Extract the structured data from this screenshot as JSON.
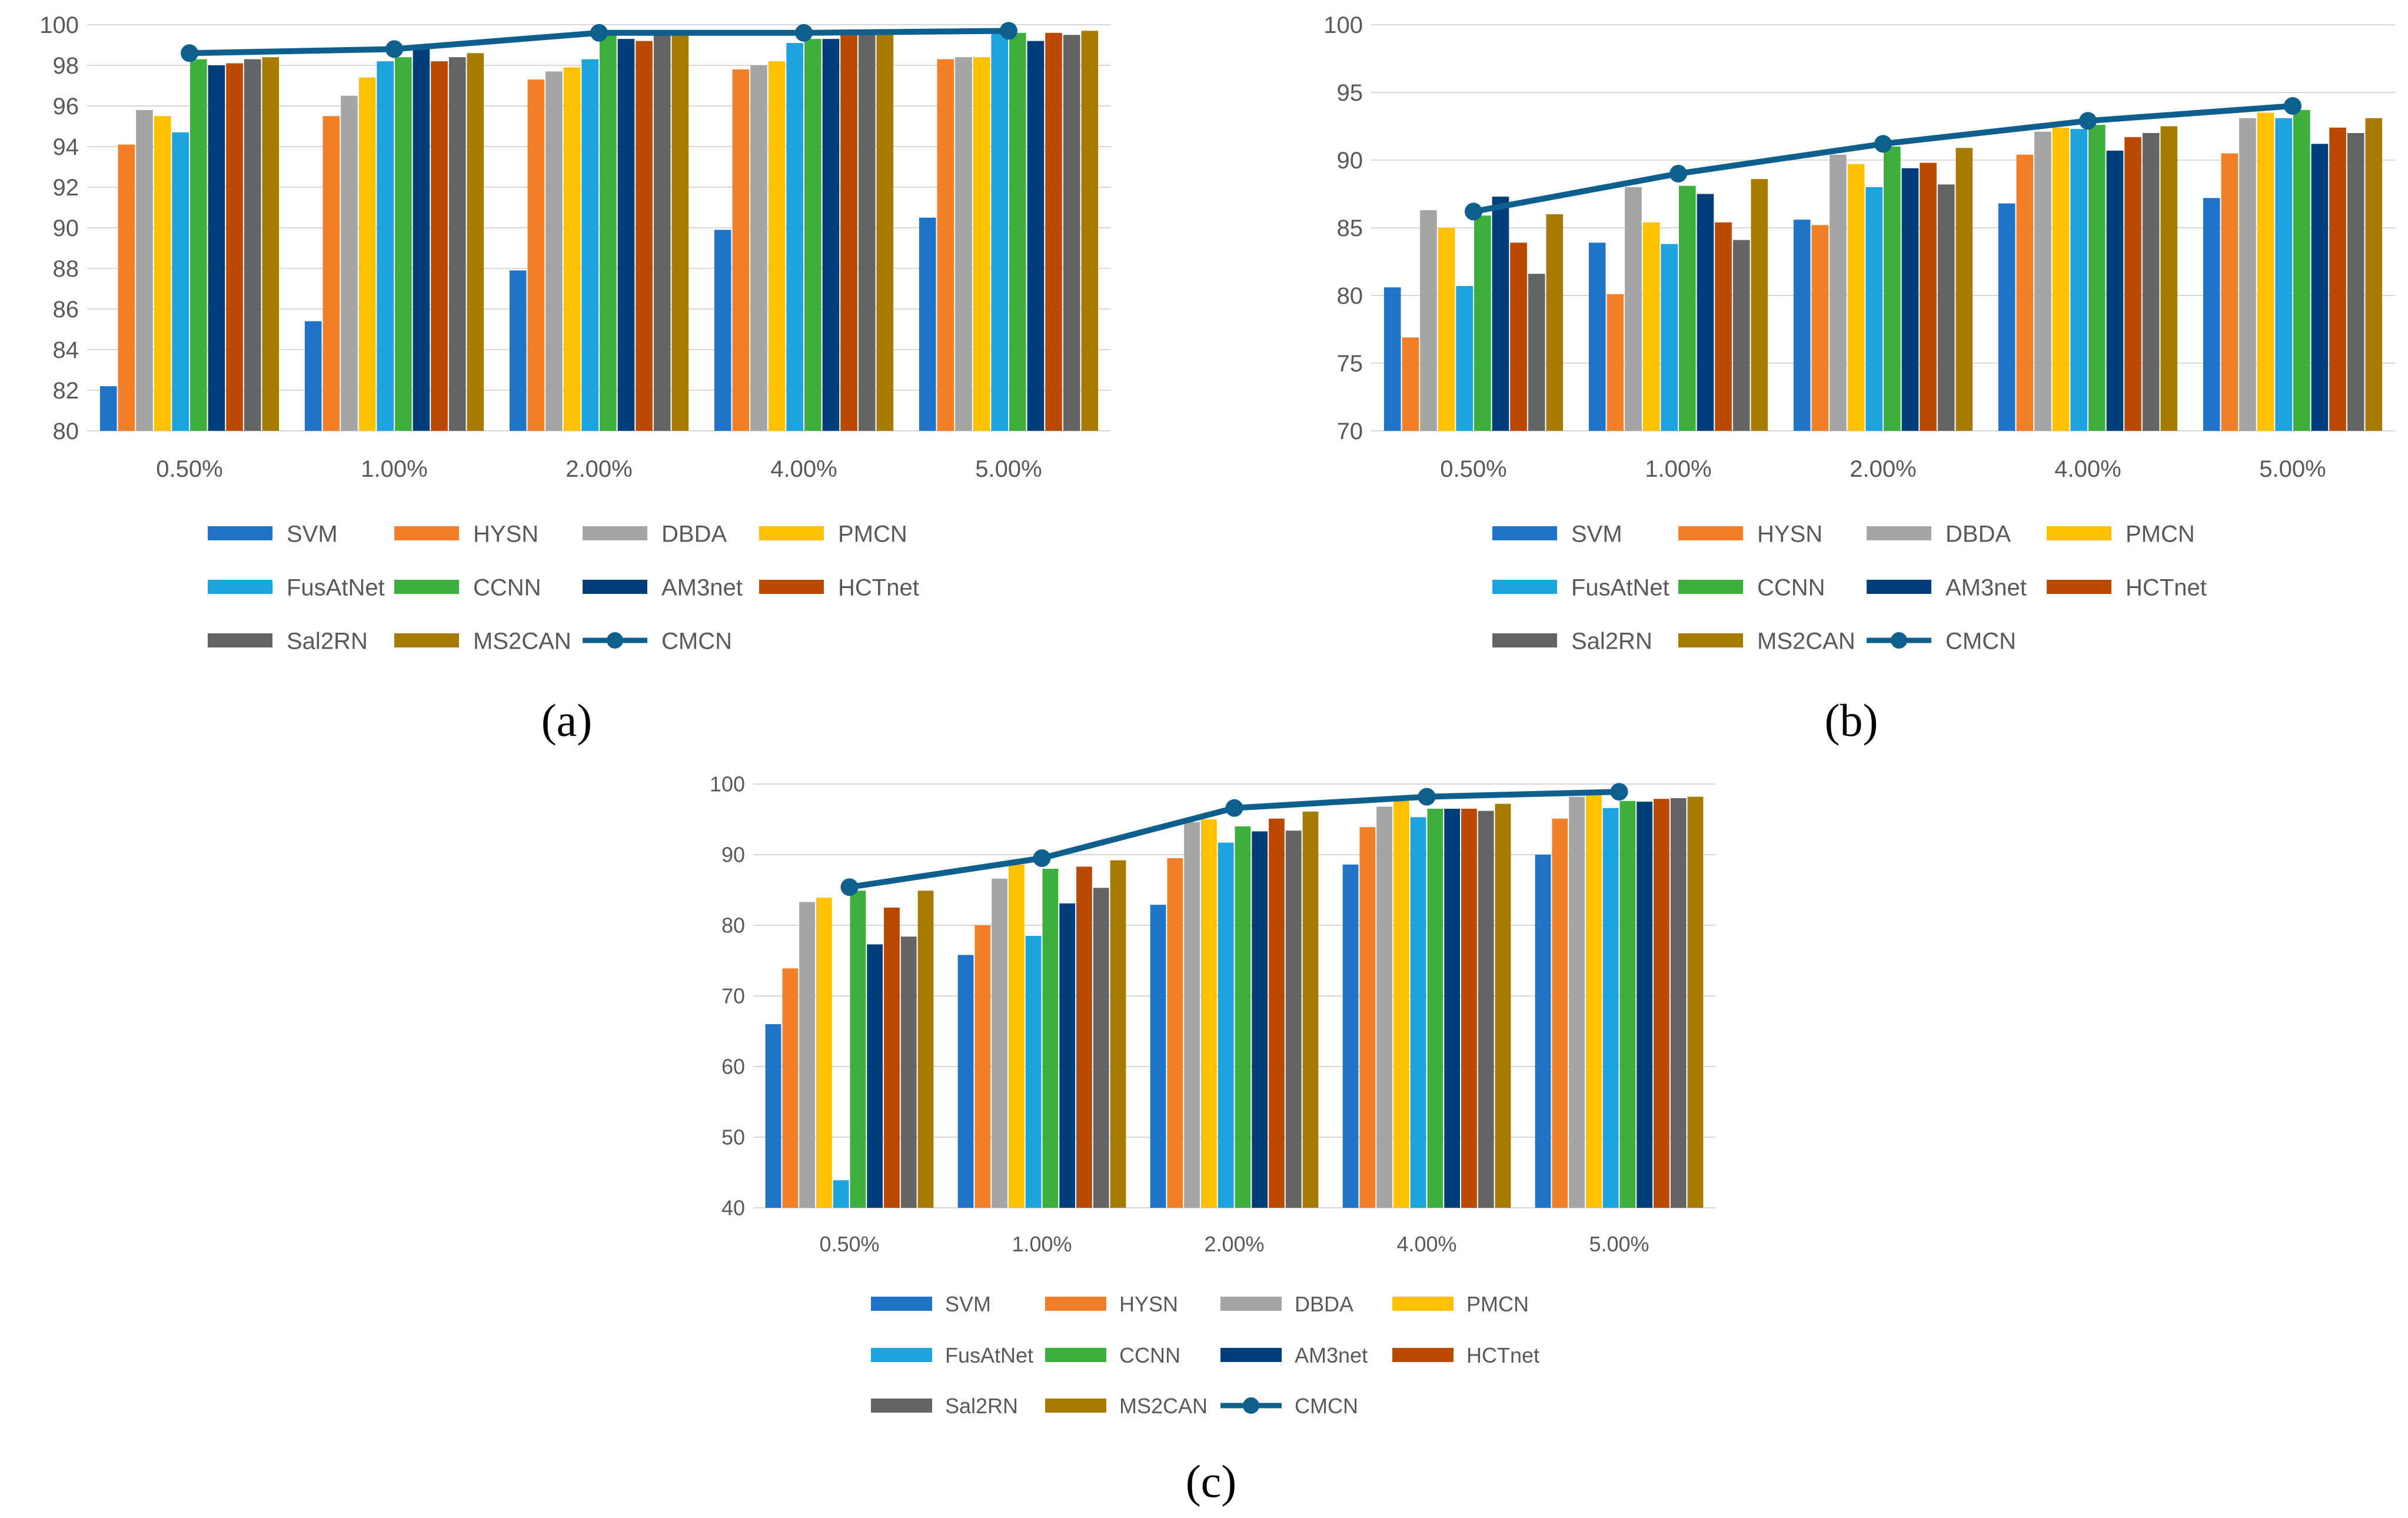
{
  "colors": {
    "SVM": "#1F74C8",
    "HYSN": "#F47F2A",
    "DBDA": "#A5A5A5",
    "PMCN": "#FFC000",
    "FusAtNet": "#1EA3DD",
    "CCNN": "#3DAF3D",
    "AM3net": "#003E7A",
    "HCTnet": "#B94A00",
    "Sal2RN": "#646464",
    "MS2CAN": "#A67B00",
    "CMCN": "#0F5F8E"
  },
  "legend_order": [
    "SVM",
    "HYSN",
    "DBDA",
    "PMCN",
    "FusAtNet",
    "CCNN",
    "AM3net",
    "HCTnet",
    "Sal2RN",
    "MS2CAN",
    "CMCN"
  ],
  "chart_data": [
    {
      "type": "bar",
      "caption": "(a)",
      "categories": [
        "0.50%",
        "1.00%",
        "2.00%",
        "4.00%",
        "5.00%"
      ],
      "ylim": [
        80,
        100
      ],
      "yticks": [
        80,
        82,
        84,
        86,
        88,
        90,
        92,
        94,
        96,
        98,
        100
      ],
      "grid": true,
      "legend_position": "bottom",
      "series": [
        {
          "name": "SVM",
          "values": [
            82.2,
            85.4,
            87.9,
            89.9,
            90.5
          ]
        },
        {
          "name": "HYSN",
          "values": [
            94.1,
            95.5,
            97.3,
            97.8,
            98.3
          ]
        },
        {
          "name": "DBDA",
          "values": [
            95.8,
            96.5,
            97.7,
            98.0,
            98.4
          ]
        },
        {
          "name": "PMCN",
          "values": [
            95.5,
            97.4,
            97.9,
            98.2,
            98.4
          ]
        },
        {
          "name": "FusAtNet",
          "values": [
            94.7,
            98.2,
            98.3,
            99.1,
            99.6
          ]
        },
        {
          "name": "CCNN",
          "values": [
            98.3,
            98.4,
            99.5,
            99.3,
            99.6
          ]
        },
        {
          "name": "AM3net",
          "values": [
            98.0,
            98.8,
            99.3,
            99.3,
            99.2
          ]
        },
        {
          "name": "HCTnet",
          "values": [
            98.1,
            98.2,
            99.2,
            99.5,
            99.6
          ]
        },
        {
          "name": "Sal2RN",
          "values": [
            98.3,
            98.4,
            99.5,
            99.5,
            99.5
          ]
        },
        {
          "name": "MS2CAN",
          "values": [
            98.4,
            98.6,
            99.5,
            99.6,
            99.7
          ]
        },
        {
          "name": "CMCN",
          "type": "line",
          "values": [
            98.6,
            98.8,
            99.6,
            99.6,
            99.7
          ]
        }
      ]
    },
    {
      "type": "bar",
      "caption": "(b)",
      "categories": [
        "0.50%",
        "1.00%",
        "2.00%",
        "4.00%",
        "5.00%"
      ],
      "ylim": [
        70,
        100
      ],
      "yticks": [
        70,
        75,
        80,
        85,
        90,
        95,
        100
      ],
      "grid": true,
      "legend_position": "bottom",
      "series": [
        {
          "name": "SVM",
          "values": [
            80.6,
            83.9,
            85.6,
            86.8,
            87.2
          ]
        },
        {
          "name": "HYSN",
          "values": [
            76.9,
            80.1,
            85.2,
            90.4,
            90.5
          ]
        },
        {
          "name": "DBDA",
          "values": [
            86.3,
            88.0,
            90.4,
            92.1,
            93.1
          ]
        },
        {
          "name": "PMCN",
          "values": [
            85.0,
            85.4,
            89.7,
            92.4,
            93.5
          ]
        },
        {
          "name": "FusAtNet",
          "values": [
            80.7,
            83.8,
            88.0,
            92.3,
            93.1
          ]
        },
        {
          "name": "CCNN",
          "values": [
            85.9,
            88.1,
            91.0,
            92.6,
            93.7
          ]
        },
        {
          "name": "AM3net",
          "values": [
            87.3,
            87.5,
            89.4,
            90.7,
            91.2
          ]
        },
        {
          "name": "HCTnet",
          "values": [
            83.9,
            85.4,
            89.8,
            91.7,
            92.4
          ]
        },
        {
          "name": "Sal2RN",
          "values": [
            81.6,
            84.1,
            88.2,
            92.0,
            92.0
          ]
        },
        {
          "name": "MS2CAN",
          "values": [
            86.0,
            88.6,
            90.9,
            92.5,
            93.1
          ]
        },
        {
          "name": "CMCN",
          "type": "line",
          "values": [
            86.2,
            89.0,
            91.2,
            92.9,
            94.0
          ]
        }
      ]
    },
    {
      "type": "bar",
      "caption": "(c)",
      "categories": [
        "0.50%",
        "1.00%",
        "2.00%",
        "4.00%",
        "5.00%"
      ],
      "ylim": [
        40,
        100
      ],
      "yticks": [
        40,
        50,
        60,
        70,
        80,
        90,
        100
      ],
      "grid": true,
      "legend_position": "bottom",
      "series": [
        {
          "name": "SVM",
          "values": [
            66.0,
            75.8,
            82.9,
            88.6,
            90.0
          ]
        },
        {
          "name": "HYSN",
          "values": [
            73.9,
            80.0,
            89.5,
            93.9,
            95.1
          ]
        },
        {
          "name": "DBDA",
          "values": [
            83.3,
            86.6,
            94.6,
            96.8,
            98.2
          ]
        },
        {
          "name": "PMCN",
          "values": [
            83.9,
            88.6,
            95.0,
            97.6,
            98.4
          ]
        },
        {
          "name": "FusAtNet",
          "values": [
            43.9,
            78.5,
            91.7,
            95.3,
            96.6
          ]
        },
        {
          "name": "CCNN",
          "values": [
            84.9,
            88.0,
            94.0,
            96.5,
            97.6
          ]
        },
        {
          "name": "AM3net",
          "values": [
            77.3,
            83.1,
            93.3,
            96.5,
            97.5
          ]
        },
        {
          "name": "HCTnet",
          "values": [
            82.5,
            88.3,
            95.1,
            96.5,
            97.9
          ]
        },
        {
          "name": "Sal2RN",
          "values": [
            78.4,
            85.3,
            93.4,
            96.2,
            98.0
          ]
        },
        {
          "name": "MS2CAN",
          "values": [
            84.9,
            89.2,
            96.1,
            97.2,
            98.2
          ]
        },
        {
          "name": "CMCN",
          "type": "line",
          "values": [
            85.4,
            89.5,
            96.6,
            98.2,
            98.9
          ]
        }
      ]
    }
  ]
}
